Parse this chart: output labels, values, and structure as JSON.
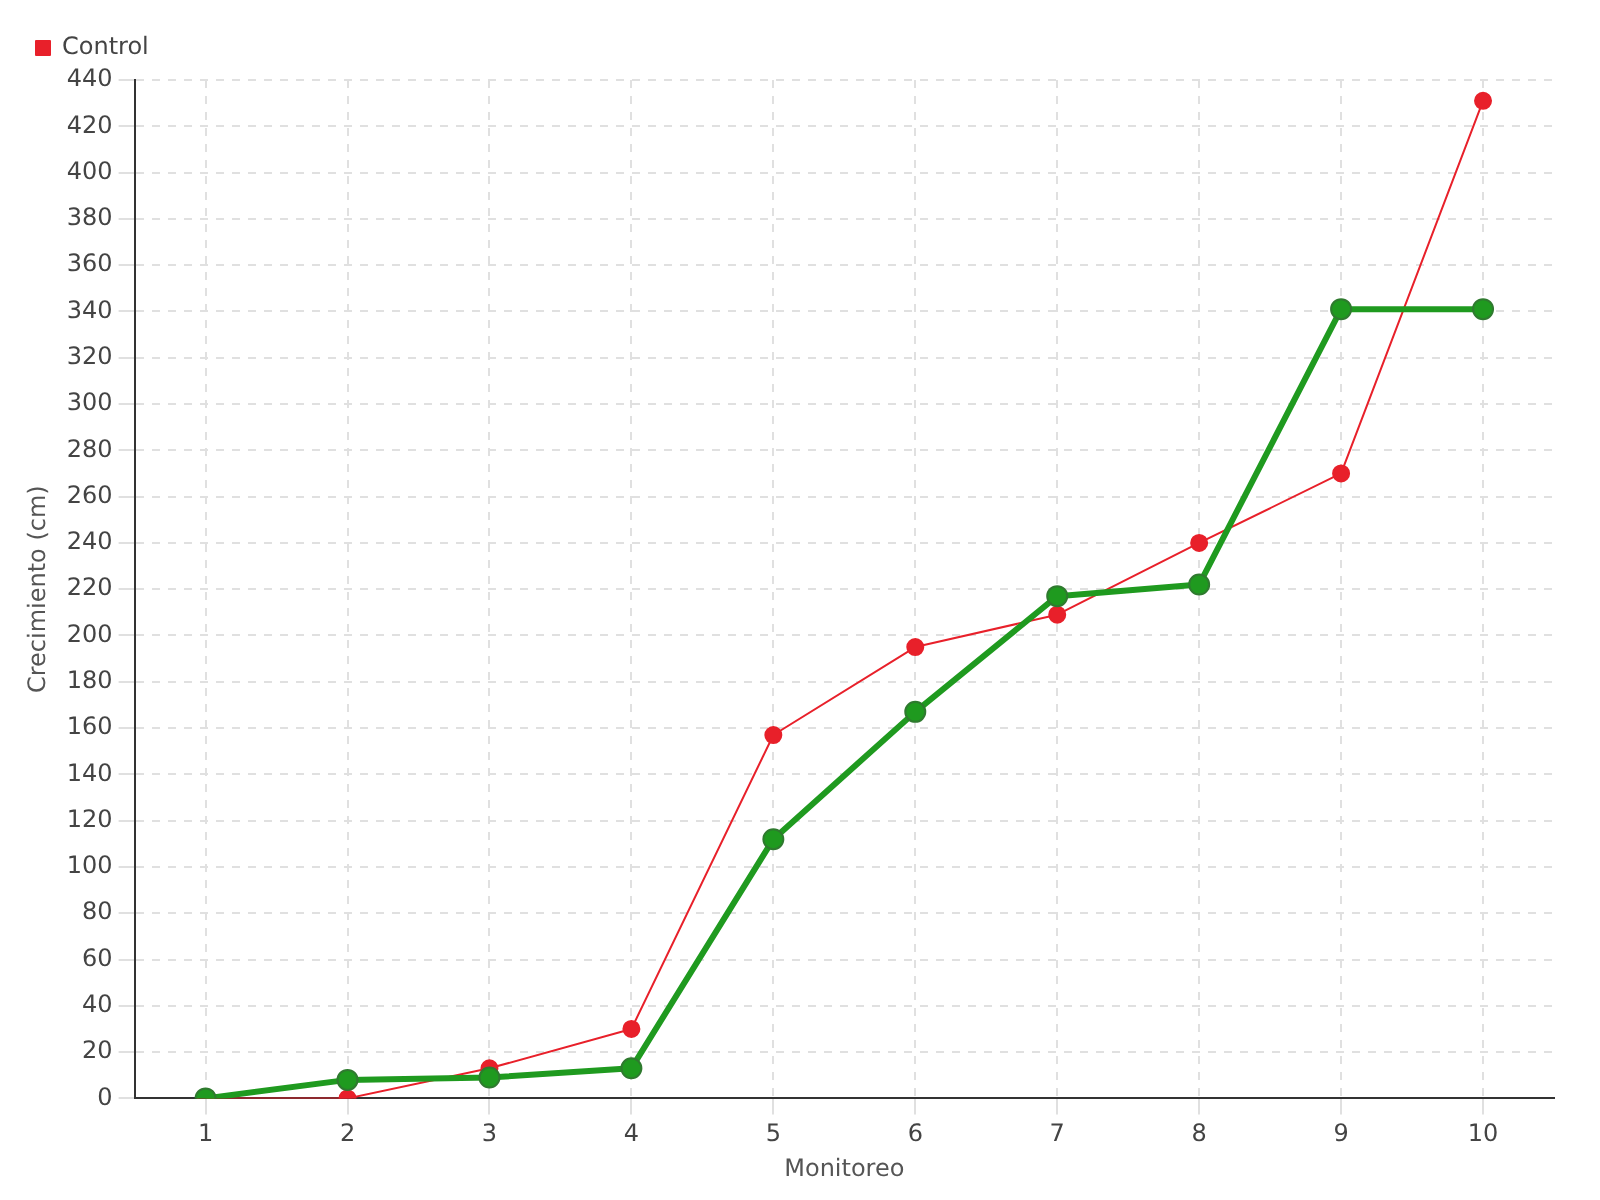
{
  "chart_data": {
    "type": "line",
    "xlabel": "Monitoreo",
    "ylabel": "Crecimiento (cm)",
    "categories": [
      "1",
      "2",
      "3",
      "4",
      "5",
      "6",
      "7",
      "8",
      "9",
      "10"
    ],
    "series": [
      {
        "color": "#1f9a1f",
        "values": [
          0,
          8,
          9,
          13,
          112,
          167,
          217,
          222,
          341,
          341
        ]
      },
      {
        "name": "Control",
        "color": "#e8202a",
        "values": [
          0,
          0,
          13,
          30,
          157,
          195,
          209,
          240,
          270,
          431
        ]
      }
    ],
    "ylim": [
      0,
      440
    ],
    "yticks": [
      0,
      20,
      40,
      60,
      80,
      100,
      120,
      140,
      160,
      180,
      200,
      220,
      240,
      260,
      280,
      300,
      320,
      340,
      360,
      380,
      400,
      420,
      440
    ],
    "grid": true,
    "legend": "top left",
    "marker": "circle",
    "line_style": "solid"
  }
}
